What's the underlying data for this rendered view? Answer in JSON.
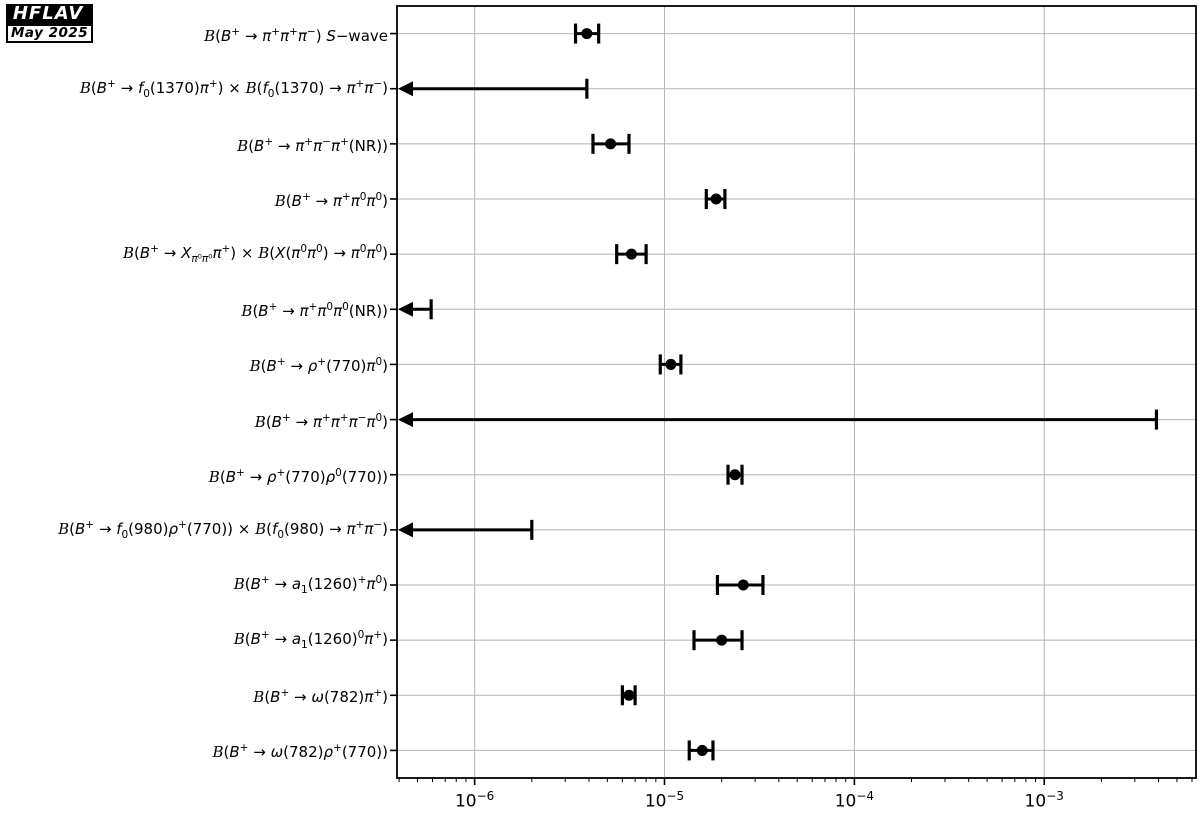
{
  "logo": {
    "title": "HFLAV",
    "date": "May 2025"
  },
  "chart_data": {
    "type": "scatter",
    "subtype": "horizontal-errorbar",
    "title": "",
    "x_scale": "log",
    "grid": true,
    "marker_color": "#000000",
    "grid_color": "#b5b5b5",
    "x_axis": {
      "min": 3.9e-07,
      "max": 0.0063,
      "tick_exponents": [
        -6,
        -5,
        -4,
        -3
      ],
      "tick_labels": [
        "10⁻⁶",
        "10⁻⁵",
        "10⁻⁴",
        "10⁻³"
      ]
    },
    "rows": [
      {
        "label": "ℬ(B⁺ → π⁺π⁺π⁻) S−wave",
        "label_html": "<span class='cal'>B</span>(<i>B</i><sup>+</sup> → <i>π</i><sup>+</sup><i>π</i><sup>+</sup><i>π</i><sup>−</sup>) <i>S</i>−wave",
        "kind": "measurement",
        "value": 3.9e-06,
        "lo": 3.4e-06,
        "hi": 4.5e-06
      },
      {
        "label": "ℬ(B⁺ → f₀(1370)π⁺) × ℬ(f₀(1370) → π⁺π⁻)",
        "label_html": "<span class='cal'>B</span>(<i>B</i><sup>+</sup> → <i>f</i><sub>0</sub>(1370)<i>π</i><sup>+</sup>) × <span class='cal'>B</span>(<i>f</i><sub>0</sub>(1370) → <i>π</i><sup>+</sup><i>π</i><sup>−</sup>)",
        "kind": "upper_limit",
        "limit": 3.9e-06
      },
      {
        "label": "ℬ(B⁺ → π⁺π⁻π⁺(NR))",
        "label_html": "<span class='cal'>B</span>(<i>B</i><sup>+</sup> → <i>π</i><sup>+</sup><i>π</i><sup>−</sup><i>π</i><sup>+</sup>(NR))",
        "kind": "measurement",
        "value": 5.2e-06,
        "lo": 4.2e-06,
        "hi": 6.5e-06
      },
      {
        "label": "ℬ(B⁺ → π⁺π⁰π⁰)",
        "label_html": "<span class='cal'>B</span>(<i>B</i><sup>+</sup> → <i>π</i><sup>+</sup><i>π</i><sup>0</sup><i>π</i><sup>0</sup>)",
        "kind": "measurement",
        "value": 1.87e-05,
        "lo": 1.66e-05,
        "hi": 2.08e-05
      },
      {
        "label": "ℬ(B⁺ → Xπ⁰π⁰π⁺) × ℬ(X(π⁰π⁰) → π⁰π⁰)",
        "label_html": "<span class='cal'>B</span>(<i>B</i><sup>+</sup> → <i>X</i><sub><i>π</i>⁰<i>π</i>⁰</sub><i>π</i><sup>+</sup>) × <span class='cal'>B</span>(<i>X</i>(<i>π</i><sup>0</sup><i>π</i><sup>0</sup>) → <i>π</i><sup>0</sup><i>π</i><sup>0</sup>)",
        "kind": "measurement",
        "value": 6.7e-06,
        "lo": 5.6e-06,
        "hi": 8e-06
      },
      {
        "label": "ℬ(B⁺ → π⁺π⁰π⁰(NR))",
        "label_html": "<span class='cal'>B</span>(<i>B</i><sup>+</sup> → <i>π</i><sup>+</sup><i>π</i><sup>0</sup><i>π</i><sup>0</sup>(NR))",
        "kind": "upper_limit",
        "limit": 5.9e-07
      },
      {
        "label": "ℬ(B⁺ → ρ⁺(770)π⁰)",
        "label_html": "<span class='cal'>B</span>(<i>B</i><sup>+</sup> → <i>ρ</i><sup>+</sup>(770)<i>π</i><sup>0</sup>)",
        "kind": "measurement",
        "value": 1.08e-05,
        "lo": 9.5e-06,
        "hi": 1.22e-05
      },
      {
        "label": "ℬ(B⁺ → π⁺π⁺π⁻π⁰)",
        "label_html": "<span class='cal'>B</span>(<i>B</i><sup>+</sup> → <i>π</i><sup>+</sup><i>π</i><sup>+</sup><i>π</i><sup>−</sup><i>π</i><sup>0</sup>)",
        "kind": "upper_limit",
        "limit": 0.0039
      },
      {
        "label": "ℬ(B⁺ → ρ⁺(770)ρ⁰(770))",
        "label_html": "<span class='cal'>B</span>(<i>B</i><sup>+</sup> → <i>ρ</i><sup>+</sup>(770)<i>ρ</i><sup>0</sup>(770))",
        "kind": "measurement",
        "value": 2.35e-05,
        "lo": 2.16e-05,
        "hi": 2.56e-05
      },
      {
        "label": "ℬ(B⁺ → f₀(980)ρ⁺(770)) × ℬ(f₀(980) → π⁺π⁻)",
        "label_html": "<span class='cal'>B</span>(<i>B</i><sup>+</sup> → <i>f</i><sub>0</sub>(980)<i>ρ</i><sup>+</sup>(770)) × <span class='cal'>B</span>(<i>f</i><sub>0</sub>(980) → <i>π</i><sup>+</sup><i>π</i><sup>−</sup>)",
        "kind": "upper_limit",
        "limit": 2e-06
      },
      {
        "label": "ℬ(B⁺ → a₁(1260)⁺π⁰)",
        "label_html": "<span class='cal'>B</span>(<i>B</i><sup>+</sup> → <i>a</i><sub>1</sub>(1260)<sup>+</sup><i>π</i><sup>0</sup>)",
        "kind": "measurement",
        "value": 2.6e-05,
        "lo": 1.9e-05,
        "hi": 3.3e-05
      },
      {
        "label": "ℬ(B⁺ → a₁(1260)⁰π⁺)",
        "label_html": "<span class='cal'>B</span>(<i>B</i><sup>+</sup> → <i>a</i><sub>1</sub>(1260)<sup>0</sup><i>π</i><sup>+</sup>)",
        "kind": "measurement",
        "value": 2e-05,
        "lo": 1.43e-05,
        "hi": 2.56e-05
      },
      {
        "label": "ℬ(B⁺ → ω(782)π⁺)",
        "label_html": "<span class='cal'>B</span>(<i>B</i><sup>+</sup> → <i>ω</i>(782)<i>π</i><sup>+</sup>)",
        "kind": "measurement",
        "value": 6.5e-06,
        "lo": 6e-06,
        "hi": 7e-06
      },
      {
        "label": "ℬ(B⁺ → ω(782)ρ⁺(770))",
        "label_html": "<span class='cal'>B</span>(<i>B</i><sup>+</sup> → <i>ω</i>(782)<i>ρ</i><sup>+</sup>(770))",
        "kind": "measurement",
        "value": 1.58e-05,
        "lo": 1.35e-05,
        "hi": 1.8e-05
      }
    ]
  }
}
